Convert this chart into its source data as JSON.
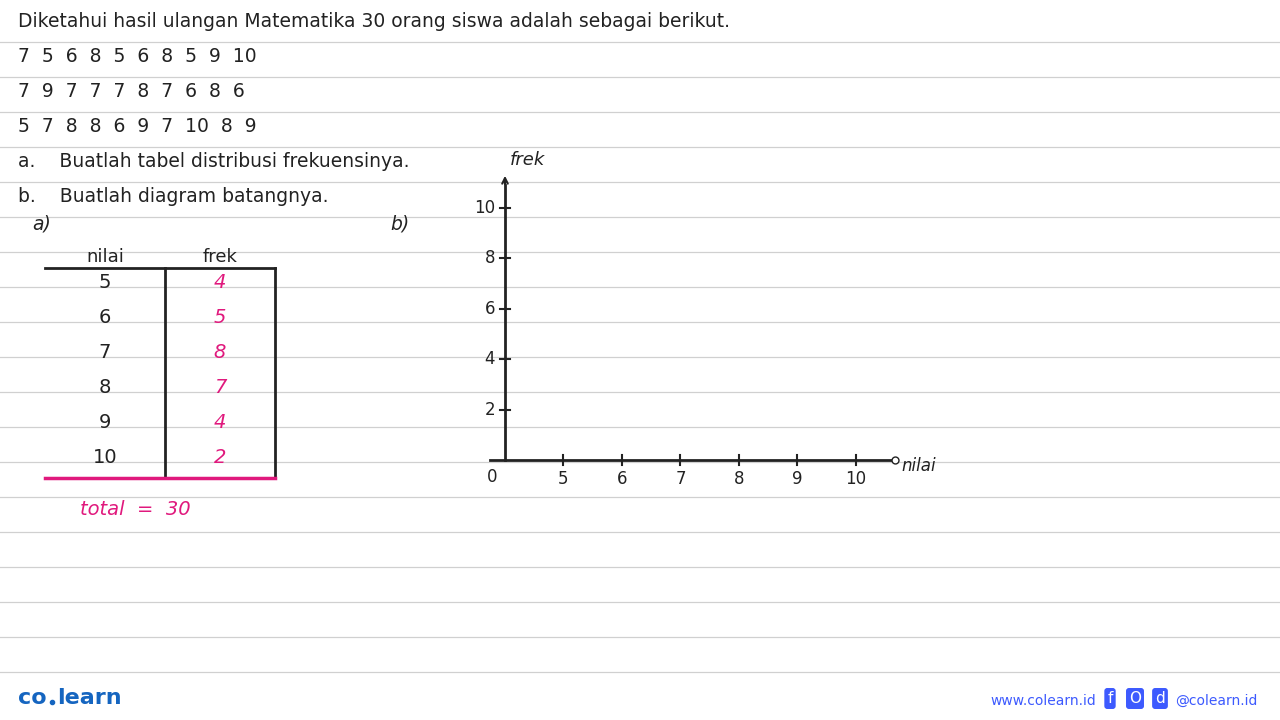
{
  "bg_color": "#ffffff",
  "line_color_ruled": "#d0d0d0",
  "title_text": "Diketahui hasil ulangan Matematika 30 orang siswa adalah sebagai berikut.",
  "data_rows": [
    "7  5  6  8  5  6  8  5  9  10",
    "7  9  7  7  7  8  7  6  8  6",
    "5  7  8  8  6  9  7  10  8  9"
  ],
  "question_a": "a.    Buatlah tabel distribusi frekuensinya.",
  "question_b": "b.    Buatlah diagram batangnya.",
  "section_a_label": "a)",
  "section_b_label": "b)",
  "table_header_nilai": "nilai",
  "table_header_frek": "frek",
  "table_data": [
    [
      5,
      4
    ],
    [
      6,
      5
    ],
    [
      7,
      8
    ],
    [
      8,
      7
    ],
    [
      9,
      4
    ],
    [
      10,
      2
    ]
  ],
  "total_label": "total  =  30",
  "frek_color": "#e0197d",
  "text_color": "#222222",
  "line_color": "#222222",
  "chart_ylabel": "frek",
  "chart_xlabel": "nilai",
  "chart_yticks": [
    2,
    4,
    6,
    8,
    10
  ],
  "chart_xticks": [
    5,
    6,
    7,
    8,
    9,
    10
  ],
  "colearn_color": "#1565C0",
  "footer_web": "www.colearn.id",
  "footer_social": "@colearn.id",
  "footer_icons_color": "#3d5afe"
}
